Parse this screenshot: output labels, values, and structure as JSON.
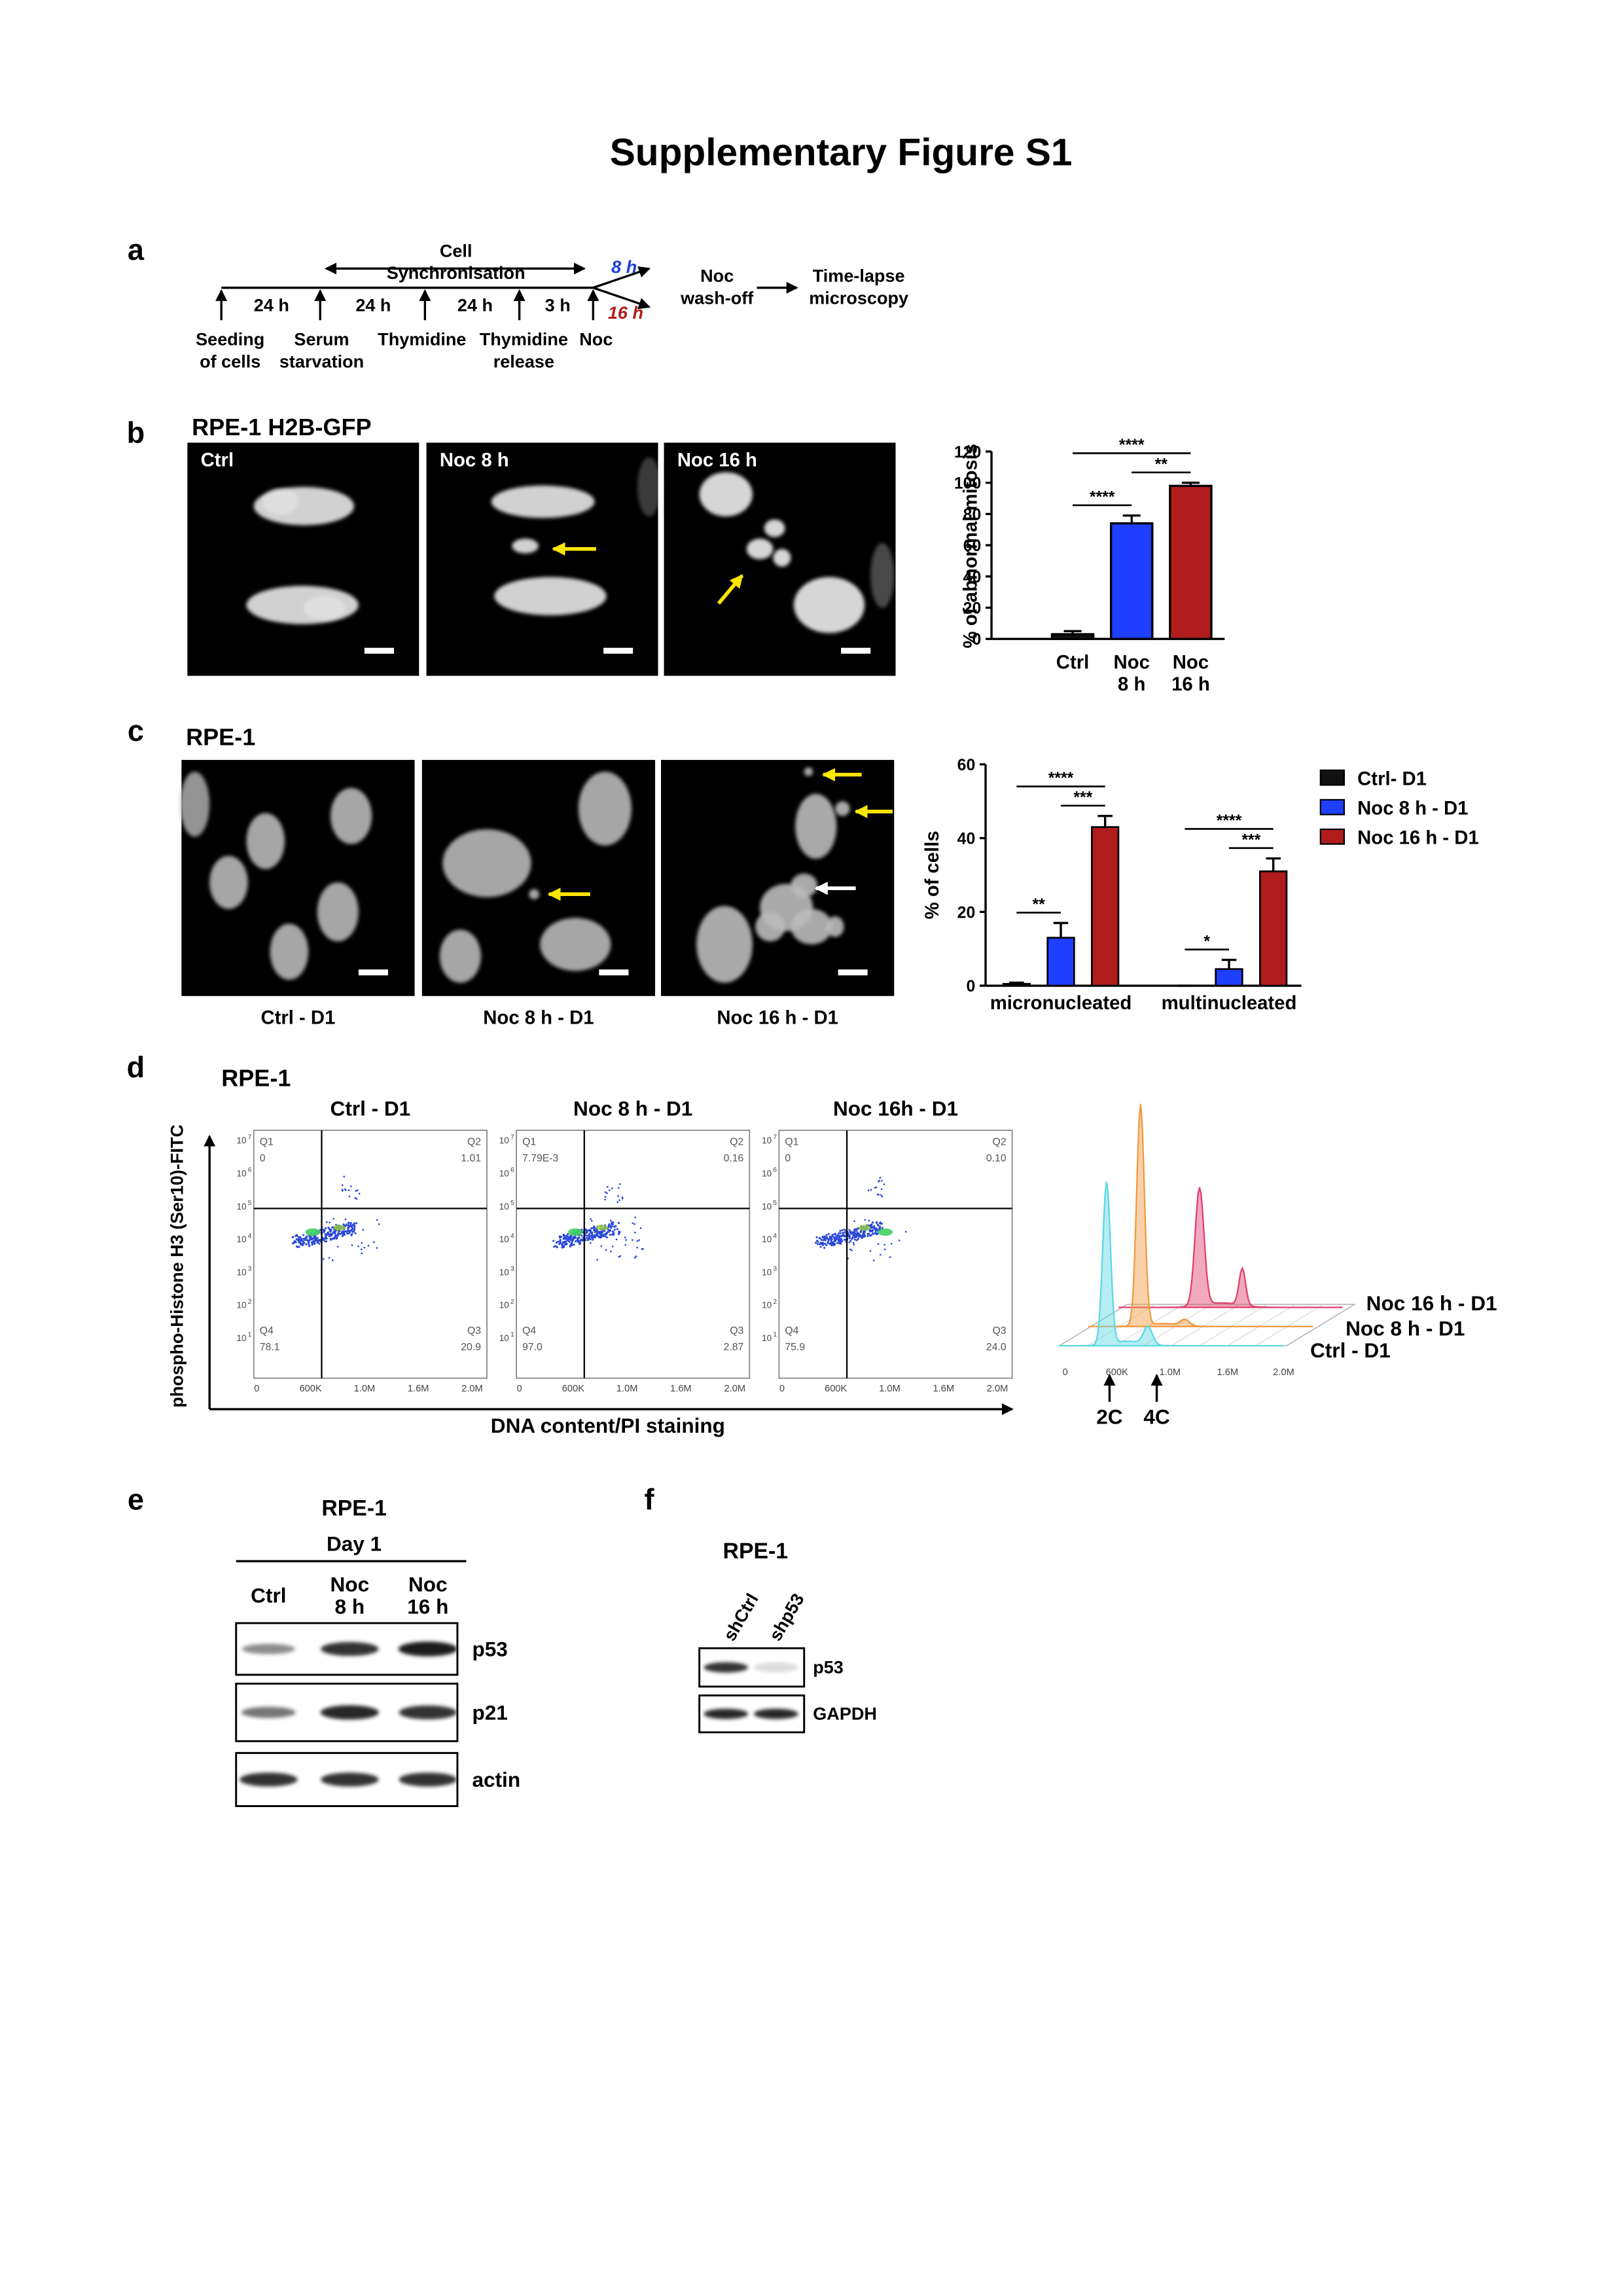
{
  "title": "Supplementary Figure S1",
  "panel_a": {
    "label": "a",
    "synchronisation": [
      "Cell",
      "Synchronisation"
    ],
    "intervals": [
      "24 h",
      "24 h",
      "24 h",
      "3 h"
    ],
    "events": [
      [
        "Seeding",
        "of cells"
      ],
      [
        "Serum",
        "starvation"
      ],
      [
        "Thymidine"
      ],
      [
        "Thymidine",
        "release"
      ],
      [
        "Noc"
      ]
    ],
    "branches": [
      {
        "label": "8 h",
        "color": "#1f3fd8"
      },
      {
        "label": "16 h",
        "color": "#b01c1c"
      }
    ],
    "steps": [
      [
        "Noc",
        "wash-off"
      ],
      [
        "Time-lapse",
        "microscopy"
      ]
    ]
  },
  "panel_b": {
    "label": "b",
    "title": "RPE-1 H2B-GFP",
    "images": [
      "Ctrl",
      "Noc 8 h",
      "Noc 16 h"
    ],
    "chart_data": {
      "type": "bar",
      "y_label": "% of abnormal mitosis",
      "categories": [
        [
          "Ctrl"
        ],
        [
          "Noc",
          "8 h"
        ],
        [
          "Noc",
          "16 h"
        ]
      ],
      "values": [
        3,
        74,
        98
      ],
      "errors": [
        2,
        5,
        2
      ],
      "colors": [
        "#111111",
        "#1f3fff",
        "#b01c1c"
      ],
      "ylim": [
        0,
        120
      ],
      "yticks": [
        0,
        20,
        40,
        60,
        80,
        100,
        120
      ],
      "significance": [
        {
          "label": "****",
          "pair": [
            0,
            1
          ]
        },
        {
          "label": "**",
          "pair": [
            1,
            2
          ]
        },
        {
          "label": "****",
          "pair": [
            0,
            2
          ]
        }
      ]
    }
  },
  "panel_c": {
    "label": "c",
    "title": "RPE-1",
    "images": [
      "Ctrl - D1",
      "Noc 8 h - D1",
      "Noc 16 h - D1"
    ],
    "chart_data": {
      "type": "grouped_bar",
      "y_label": "% of cells",
      "categories": [
        "micronucleated",
        "multinucleated"
      ],
      "series": [
        {
          "name": "Ctrl- D1",
          "color": "#111111",
          "values": [
            0.5,
            0
          ],
          "errors": [
            0.3,
            0
          ]
        },
        {
          "name": "Noc 8 h - D1",
          "color": "#1f3fff",
          "values": [
            13,
            4.5
          ],
          "errors": [
            4,
            2.5
          ]
        },
        {
          "name": "Noc 16 h - D1",
          "color": "#b01c1c",
          "values": [
            43,
            31
          ],
          "errors": [
            3,
            3.5
          ]
        }
      ],
      "ylim": [
        0,
        60
      ],
      "yticks": [
        0,
        20,
        40,
        60
      ],
      "significance": [
        [
          {
            "label": "**",
            "pair": [
              0,
              1
            ]
          },
          {
            "label": "***",
            "pair": [
              1,
              2
            ]
          },
          {
            "label": "****",
            "pair": [
              0,
              2
            ]
          }
        ],
        [
          {
            "label": "*",
            "pair": [
              0,
              1
            ]
          },
          {
            "label": "***",
            "pair": [
              1,
              2
            ]
          },
          {
            "label": "****",
            "pair": [
              0,
              2
            ]
          }
        ]
      ]
    }
  },
  "panel_d": {
    "label": "d",
    "title": "RPE-1",
    "y_label": "phospho-Histone H3 (Ser10)-FITC",
    "x_label": "DNA content/PI staining",
    "plots": [
      {
        "title": "Ctrl - D1",
        "quadrants": [
          {
            "name": "Q1",
            "value": "0"
          },
          {
            "name": "Q2",
            "value": "1.01"
          },
          {
            "name": "Q3",
            "value": "20.9"
          },
          {
            "name": "Q4",
            "value": "78.1"
          }
        ]
      },
      {
        "title": "Noc 8 h - D1",
        "quadrants": [
          {
            "name": "Q1",
            "value": "7.79E-3"
          },
          {
            "name": "Q2",
            "value": "0.16"
          },
          {
            "name": "Q3",
            "value": "2.87"
          },
          {
            "name": "Q4",
            "value": "97.0"
          }
        ]
      },
      {
        "title": "Noc 16h - D1",
        "quadrants": [
          {
            "name": "Q1",
            "value": "0"
          },
          {
            "name": "Q2",
            "value": "0.10"
          },
          {
            "name": "Q3",
            "value": "24.0"
          },
          {
            "name": "Q4",
            "value": "75.9"
          }
        ]
      }
    ],
    "xticks": [
      "0",
      "600K",
      "1.0M",
      "1.6M",
      "2.0M"
    ],
    "yticks": [
      {
        "base": "10",
        "exponent": "7"
      },
      {
        "base": "10",
        "exponent": "6"
      },
      {
        "base": "10",
        "exponent": "5"
      },
      {
        "base": "10",
        "exponent": "4"
      },
      {
        "base": "10",
        "exponent": "3"
      },
      {
        "base": "10",
        "exponent": "2"
      },
      {
        "base": "10",
        "exponent": "1"
      }
    ],
    "histogram": {
      "series": [
        "Noc 16 h - D1",
        "Noc 8 h - D1",
        "Ctrl - D1"
      ],
      "xticks": [
        "0",
        "600K",
        "1.0M",
        "1.6M",
        "2.0M"
      ],
      "markers": [
        "2C",
        "4C"
      ]
    }
  },
  "panel_e": {
    "label": "e",
    "title": "RPE-1",
    "group": "Day 1",
    "lanes": [
      [
        "Ctrl"
      ],
      [
        "Noc",
        "8 h"
      ],
      [
        "Noc",
        "16 h"
      ]
    ],
    "blots": [
      "p53",
      "p21",
      "actin"
    ]
  },
  "panel_f": {
    "label": "f",
    "title": "RPE-1",
    "lanes": [
      "shCtrl",
      "shp53"
    ],
    "blots": [
      "p53",
      "GAPDH"
    ]
  }
}
